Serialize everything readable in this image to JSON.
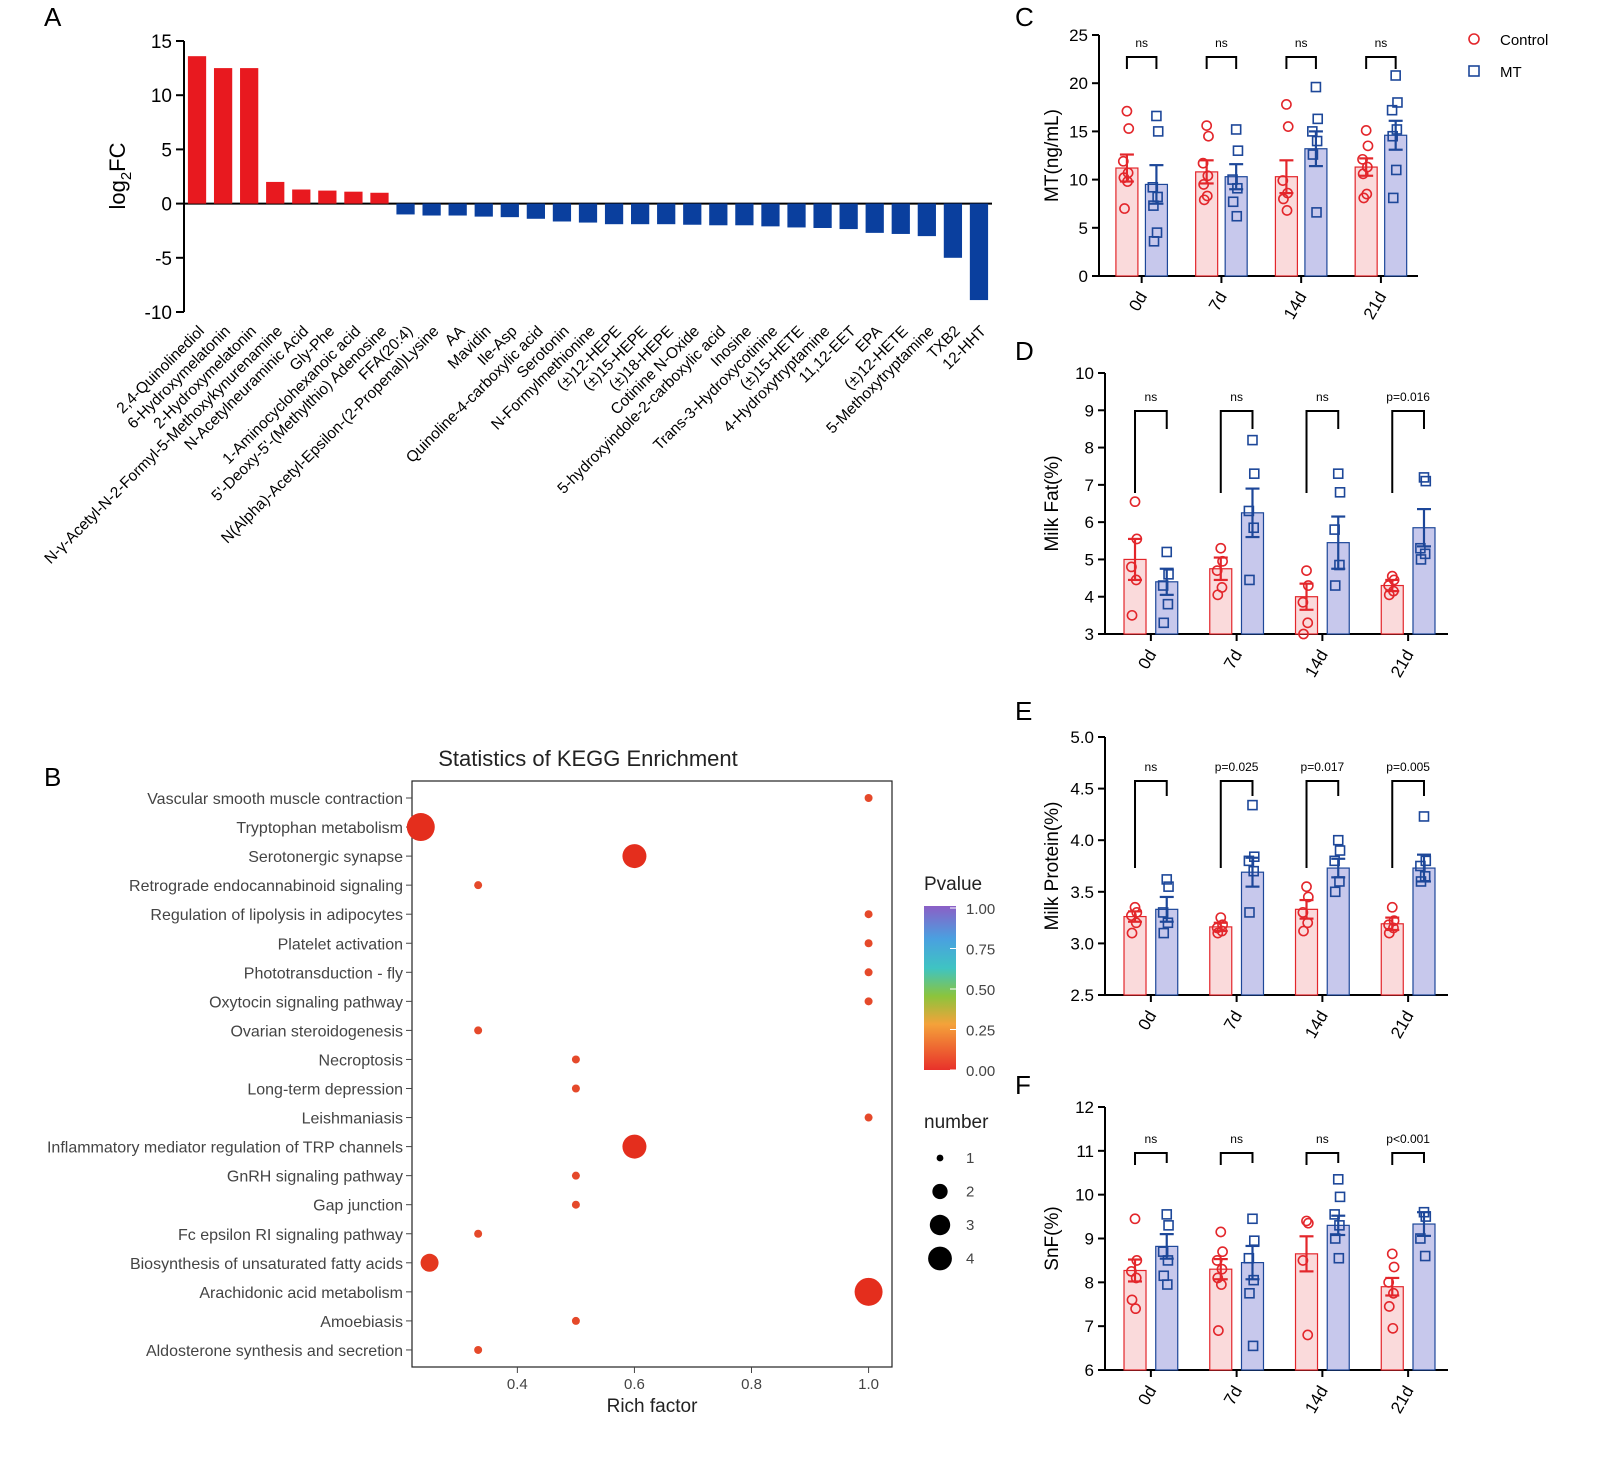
{
  "colors": {
    "control": "#e3262b",
    "mt": "#1d4799",
    "control_fill": "#fadadb",
    "mt_fill": "#c7c8ec",
    "up": "#e8191f",
    "down": "#0a3f9e"
  },
  "legend": {
    "control": "Control",
    "mt": "MT"
  },
  "chart_data": [
    {
      "panel": "A",
      "type": "bar",
      "ylabel": "log2FC",
      "ylim": [
        -10,
        15
      ],
      "yticks": [
        15,
        10,
        5,
        0,
        -5,
        -10
      ],
      "categories": [
        "2,4-Quinolinediol",
        "6-Hydroxymelatonin",
        "2-Hydroxymelatonin",
        "N-γ-Acetyl-N-2-Formyl-5-Methoxykynurenamine",
        "N-Acetylneuraminic Acid",
        "Gly-Phe",
        "1-Aminocyclohexanoic acid",
        "5'-Deoxy-5'-(Methylthio) Adenosine",
        "FFA(20:4)",
        "N(Alpha)-Acetyl-Epsilon-(2-Propenal)Lysine",
        "AA",
        "Mavidin",
        "Ile-Asp",
        "Quinoline-4-carboxylic acid",
        "Serotonin",
        "N-Formylmethionine",
        "(±)12-HEPE",
        "(±)15-HEPE",
        "(±)18-HEPE",
        "Cotinine N-Oxide",
        "5-hydroxyindole-2-carboxylic acid",
        "Inosine",
        "Trans-3-Hydroxycotinine",
        "(±)15-HETE",
        "4-Hydroxytryptamine",
        "11,12-EET",
        "EPA",
        "(±)12-HETE",
        "5-Methoxytryptamine",
        "TXB2",
        "12-HHT"
      ],
      "values": [
        13.6,
        12.5,
        12.5,
        2.0,
        1.3,
        1.2,
        1.1,
        1.0,
        -1.0,
        -1.1,
        -1.1,
        -1.2,
        -1.25,
        -1.4,
        -1.65,
        -1.75,
        -1.9,
        -1.9,
        -1.9,
        -1.95,
        -2.0,
        -2.0,
        -2.1,
        -2.2,
        -2.25,
        -2.35,
        -2.7,
        -2.8,
        -3.0,
        -5.0,
        -8.9
      ]
    },
    {
      "panel": "B",
      "type": "scatter",
      "title": "Statistics of KEGG Enrichment",
      "xlabel": "Rich factor",
      "xlim": [
        0.22,
        1.04
      ],
      "xticks": [
        0.4,
        0.6,
        0.8,
        1.0
      ],
      "pathways": [
        "Vascular smooth muscle contraction",
        "Tryptophan metabolism",
        "Serotonergic synapse",
        "Retrograde endocannabinoid signaling",
        "Regulation of lipolysis in adipocytes",
        "Platelet activation",
        "Phototransduction - fly",
        "Oxytocin signaling pathway",
        "Ovarian steroidogenesis",
        "Necroptosis",
        "Long-term depression",
        "Leishmaniasis",
        "Inflammatory mediator regulation of TRP channels",
        "GnRH signaling pathway",
        "Gap junction",
        "Fc epsilon RI signaling pathway",
        "Biosynthesis of unsaturated fatty acids",
        "Arachidonic acid metabolism",
        "Amoebiasis",
        "Aldosterone synthesis and secretion"
      ],
      "rich_factor": [
        1.0,
        0.235,
        0.6,
        0.333,
        1.0,
        1.0,
        1.0,
        1.0,
        0.333,
        0.5,
        0.5,
        1.0,
        0.6,
        0.5,
        0.5,
        0.333,
        0.25,
        1.0,
        0.5,
        0.333
      ],
      "number": [
        1,
        4,
        3,
        1,
        1,
        1,
        1,
        1,
        1,
        1,
        1,
        1,
        3,
        1,
        1,
        1,
        2,
        4,
        1,
        1
      ],
      "pvalue": [
        0.05,
        0.0,
        0.0,
        0.05,
        0.05,
        0.05,
        0.05,
        0.05,
        0.05,
        0.05,
        0.05,
        0.05,
        0.0,
        0.05,
        0.05,
        0.05,
        0.02,
        0.0,
        0.05,
        0.05
      ],
      "color_legend": {
        "title": "Pvalue",
        "ticks": [
          "1.00",
          "0.75",
          "0.50",
          "0.25",
          "0.00"
        ]
      },
      "size_legend": {
        "title": "number",
        "values": [
          "1",
          "2",
          "3",
          "4"
        ]
      }
    },
    {
      "panel": "C",
      "type": "bar",
      "ylabel": "MT(ng/mL)",
      "ylim": [
        0,
        25
      ],
      "yticks": [
        "0",
        "5",
        "10",
        "15",
        "20",
        "25"
      ],
      "categories": [
        "0d",
        "7d",
        "14d",
        "21d"
      ],
      "series": [
        {
          "name": "Control",
          "values": [
            11.2,
            10.8,
            10.3,
            11.3
          ],
          "sem": [
            1.4,
            1.2,
            1.7,
            0.9
          ],
          "points": [
            [
              17.1,
              15.3,
              11.9,
              10.7,
              10.2,
              9.8,
              7.0
            ],
            [
              15.6,
              14.5,
              11.7,
              10.4,
              9.5,
              8.3,
              7.9
            ],
            [
              17.8,
              15.5,
              9.9,
              8.6,
              8.0,
              6.8
            ],
            [
              15.1,
              13.5,
              12.1,
              11.3,
              10.6,
              8.5,
              8.1
            ]
          ]
        },
        {
          "name": "MT",
          "values": [
            9.5,
            10.3,
            13.2,
            14.6
          ],
          "sem": [
            2.0,
            1.3,
            1.8,
            1.5
          ],
          "points": [
            [
              16.6,
              15.0,
              9.2,
              8.2,
              7.3,
              4.5,
              3.6
            ],
            [
              15.2,
              13.0,
              10.0,
              9.1,
              7.7,
              6.2
            ],
            [
              19.6,
              16.3,
              15.0,
              14.0,
              12.6,
              6.6
            ],
            [
              20.8,
              18.0,
              17.2,
              15.2,
              14.5,
              11.0,
              8.1
            ]
          ]
        }
      ],
      "annotations": [
        "ns",
        "ns",
        "ns",
        "ns"
      ]
    },
    {
      "panel": "D",
      "type": "bar",
      "ylabel": "Milk Fat(%)",
      "ylim": [
        3,
        10
      ],
      "yticks": [
        "3",
        "4",
        "5",
        "6",
        "7",
        "8",
        "9",
        "10"
      ],
      "categories": [
        "0d",
        "7d",
        "14d",
        "21d"
      ],
      "series": [
        {
          "name": "Control",
          "values": [
            5.0,
            4.75,
            4.0,
            4.3
          ],
          "sem": [
            0.55,
            0.3,
            0.35,
            0.15
          ],
          "points": [
            [
              6.55,
              5.55,
              4.8,
              4.45,
              3.5
            ],
            [
              5.3,
              4.95,
              4.7,
              4.25,
              4.05
            ],
            [
              4.7,
              4.3,
              3.85,
              3.3,
              3.0
            ],
            [
              4.55,
              4.45,
              4.3,
              4.15,
              4.05
            ]
          ]
        },
        {
          "name": "MT",
          "values": [
            4.4,
            6.25,
            5.45,
            5.85
          ],
          "sem": [
            0.35,
            0.65,
            0.7,
            0.5
          ],
          "points": [
            [
              5.2,
              4.6,
              4.3,
              3.8,
              3.3
            ],
            [
              8.2,
              7.3,
              6.3,
              5.85,
              4.45
            ],
            [
              7.3,
              6.8,
              5.8,
              4.85,
              4.3
            ],
            [
              7.2,
              7.1,
              5.3,
              5.15,
              5.0
            ]
          ]
        }
      ],
      "annotations": [
        "ns",
        "ns",
        "ns",
        "p=0.016"
      ]
    },
    {
      "panel": "E",
      "type": "bar",
      "ylabel": "Milk Protein(%)",
      "ylim": [
        2.5,
        5.0
      ],
      "yticks": [
        "2.5",
        "3.0",
        "3.5",
        "4.0",
        "4.5",
        "5.0"
      ],
      "categories": [
        "0d",
        "7d",
        "14d",
        "21d"
      ],
      "series": [
        {
          "name": "Control",
          "values": [
            3.26,
            3.16,
            3.33,
            3.19
          ],
          "sem": [
            0.05,
            0.04,
            0.09,
            0.06
          ],
          "points": [
            [
              3.35,
              3.3,
              3.27,
              3.2,
              3.1
            ],
            [
              3.25,
              3.18,
              3.15,
              3.12,
              3.1
            ],
            [
              3.55,
              3.45,
              3.3,
              3.2,
              3.12
            ],
            [
              3.35,
              3.22,
              3.18,
              3.15,
              3.1
            ]
          ]
        },
        {
          "name": "MT",
          "values": [
            3.33,
            3.69,
            3.73,
            3.73
          ],
          "sem": [
            0.12,
            0.14,
            0.09,
            0.13
          ],
          "points": [
            [
              3.62,
              3.55,
              3.3,
              3.2,
              3.1
            ],
            [
              4.34,
              3.84,
              3.8,
              3.7,
              3.3
            ],
            [
              4.0,
              3.9,
              3.8,
              3.6,
              3.5
            ],
            [
              4.23,
              3.8,
              3.75,
              3.65,
              3.6
            ]
          ]
        }
      ],
      "annotations": [
        "ns",
        "p=0.025",
        "p=0.017",
        "p=0.005"
      ]
    },
    {
      "panel": "F",
      "type": "bar",
      "ylabel": "SnF(%)",
      "ylim": [
        6,
        12
      ],
      "yticks": [
        "6",
        "7",
        "8",
        "9",
        "10",
        "11",
        "12"
      ],
      "categories": [
        "0d",
        "7d",
        "14d",
        "21d"
      ],
      "series": [
        {
          "name": "Control",
          "values": [
            8.27,
            8.3,
            8.65,
            7.9
          ],
          "sem": [
            0.25,
            0.23,
            0.4,
            0.2
          ],
          "points": [
            [
              9.45,
              8.5,
              8.25,
              8.1,
              7.6,
              7.4
            ],
            [
              9.15,
              8.7,
              8.5,
              8.3,
              8.1,
              7.95,
              6.9
            ],
            [
              9.4,
              9.35,
              8.5,
              6.8
            ],
            [
              8.65,
              8.35,
              8.0,
              7.75,
              7.45,
              6.95
            ]
          ]
        },
        {
          "name": "MT",
          "values": [
            8.82,
            8.45,
            9.3,
            9.33
          ],
          "sem": [
            0.28,
            0.38,
            0.22,
            0.27
          ],
          "points": [
            [
              9.55,
              9.3,
              8.7,
              8.5,
              8.15,
              7.95
            ],
            [
              9.45,
              8.95,
              8.55,
              8.05,
              7.75,
              6.55
            ],
            [
              10.35,
              9.95,
              9.55,
              9.3,
              9.0,
              8.55
            ],
            [
              9.6,
              9.5,
              9.0,
              8.6
            ]
          ]
        }
      ],
      "annotations": [
        "ns",
        "ns",
        "ns",
        "p<0.001"
      ]
    }
  ]
}
